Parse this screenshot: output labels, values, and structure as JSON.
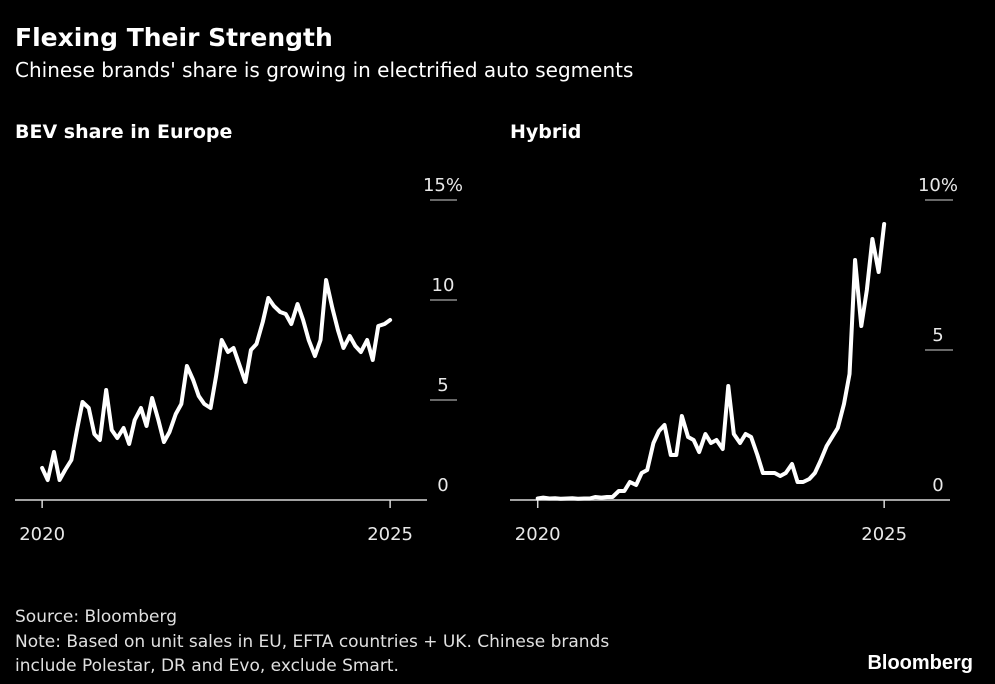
{
  "title": "Flexing Their Strength",
  "subtitle": "Chinese brands' share is growing in electrified auto segments",
  "chart_data": [
    {
      "type": "line",
      "title": "BEV share in Europe",
      "color": "#ffffff",
      "x": [
        2020,
        2020.08,
        2020.17,
        2020.25,
        2020.33,
        2020.42,
        2020.5,
        2020.58,
        2020.67,
        2020.75,
        2020.83,
        2020.92,
        2021,
        2021.08,
        2021.17,
        2021.25,
        2021.33,
        2021.42,
        2021.5,
        2021.58,
        2021.67,
        2021.75,
        2021.83,
        2021.92,
        2022,
        2022.08,
        2022.17,
        2022.25,
        2022.33,
        2022.42,
        2022.5,
        2022.58,
        2022.67,
        2022.75,
        2022.83,
        2022.92,
        2023,
        2023.08,
        2023.17,
        2023.25,
        2023.33,
        2023.42,
        2023.5,
        2023.58,
        2023.67,
        2023.75,
        2023.83,
        2023.92,
        2024,
        2024.08,
        2024.17,
        2024.25,
        2024.33,
        2024.42,
        2024.5,
        2024.58,
        2024.67,
        2024.75,
        2024.83,
        2024.92,
        2025
      ],
      "values": [
        1.6,
        1.0,
        2.4,
        1.0,
        1.5,
        2.0,
        3.5,
        4.9,
        4.6,
        3.3,
        3.0,
        5.5,
        3.5,
        3.1,
        3.6,
        2.8,
        4.0,
        4.6,
        3.7,
        5.1,
        4.0,
        2.9,
        3.4,
        4.3,
        4.8,
        6.7,
        6.0,
        5.2,
        4.8,
        4.6,
        6.2,
        8.0,
        7.4,
        7.6,
        6.8,
        5.9,
        7.5,
        7.8,
        8.9,
        10.1,
        9.7,
        9.4,
        9.3,
        8.8,
        9.8,
        9.0,
        8.0,
        7.2,
        8.0,
        11.0,
        9.6,
        8.5,
        7.6,
        8.2,
        7.7,
        7.4,
        8.0,
        7.0,
        8.7,
        8.8,
        9.0
      ],
      "xlim": [
        2019.61,
        2025.53
      ],
      "xticks": [
        2020,
        2025
      ],
      "ylim": [
        0,
        15
      ],
      "yticks": [
        0,
        5,
        10,
        {
          "value": 15,
          "label": "15%"
        }
      ]
    },
    {
      "type": "line",
      "title": "Hybrid",
      "color": "#ffffff",
      "x": [
        2020,
        2020.08,
        2020.17,
        2020.25,
        2020.33,
        2020.42,
        2020.5,
        2020.58,
        2020.67,
        2020.75,
        2020.83,
        2020.92,
        2021,
        2021.08,
        2021.17,
        2021.25,
        2021.33,
        2021.42,
        2021.5,
        2021.58,
        2021.67,
        2021.75,
        2021.83,
        2021.92,
        2022,
        2022.08,
        2022.17,
        2022.25,
        2022.33,
        2022.42,
        2022.5,
        2022.58,
        2022.67,
        2022.75,
        2022.83,
        2022.92,
        2023,
        2023.08,
        2023.17,
        2023.25,
        2023.33,
        2023.42,
        2023.5,
        2023.58,
        2023.67,
        2023.75,
        2023.83,
        2023.92,
        2024,
        2024.08,
        2024.17,
        2024.25,
        2024.33,
        2024.42,
        2024.5,
        2024.58,
        2024.67,
        2024.75,
        2024.83,
        2024.92,
        2025
      ],
      "values": [
        0.05,
        0.08,
        0.05,
        0.06,
        0.04,
        0.05,
        0.06,
        0.04,
        0.05,
        0.05,
        0.1,
        0.08,
        0.1,
        0.1,
        0.3,
        0.3,
        0.6,
        0.5,
        0.9,
        1.0,
        1.9,
        2.3,
        2.5,
        1.5,
        1.5,
        2.8,
        2.1,
        2.0,
        1.6,
        2.2,
        1.9,
        2.0,
        1.7,
        3.8,
        2.2,
        1.9,
        2.2,
        2.1,
        1.5,
        0.9,
        0.9,
        0.9,
        0.8,
        0.9,
        1.2,
        0.6,
        0.6,
        0.7,
        0.9,
        1.3,
        1.8,
        2.1,
        2.4,
        3.2,
        4.2,
        8.0,
        5.8,
        7.0,
        8.7,
        7.6,
        9.2
      ],
      "xlim": [
        2019.6,
        2025.95
      ],
      "xticks": [
        2020,
        2025
      ],
      "ylim": [
        0,
        10
      ],
      "yticks": [
        0,
        5,
        {
          "value": 10,
          "label": "10%"
        }
      ]
    }
  ],
  "source": "Source: Bloomberg",
  "note": [
    "Note: Based on unit sales in EU, EFTA countries + UK. Chinese brands",
    "include Polestar, DR and Evo, exclude Smart."
  ],
  "logo": "Bloomberg"
}
